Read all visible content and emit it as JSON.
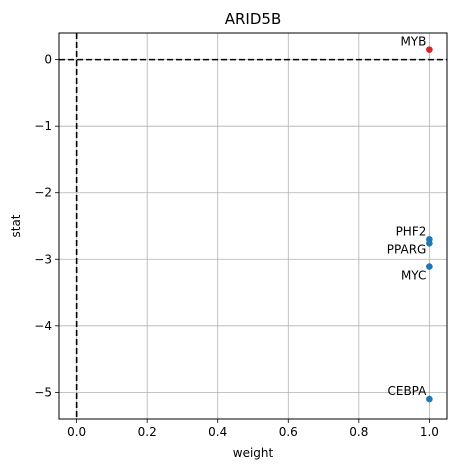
{
  "chart_data": {
    "type": "scatter",
    "title": "ARID5B",
    "xlabel": "weight",
    "ylabel": "stat",
    "xlim": [
      -0.05,
      1.05
    ],
    "ylim": [
      -5.4,
      0.4
    ],
    "xticks": [
      0.0,
      0.2,
      0.4,
      0.6,
      0.8,
      1.0
    ],
    "xtick_labels": [
      "0.0",
      "0.2",
      "0.4",
      "0.6",
      "0.8",
      "1.0"
    ],
    "yticks": [
      0,
      -1,
      -2,
      -3,
      -4,
      -5
    ],
    "ytick_labels": [
      "0",
      "−1",
      "−2",
      "−3",
      "−4",
      "−5"
    ],
    "grid": true,
    "reference_lines": {
      "x": 0,
      "y": 0,
      "style": "dashed",
      "color": "#000000"
    },
    "colors": {
      "positive": "#d62728",
      "negative": "#1f77b4"
    },
    "points": [
      {
        "label": "MYB",
        "x": 1.0,
        "y": 0.15,
        "color": "#d62728"
      },
      {
        "label": "PHF2",
        "x": 1.0,
        "y": -2.7,
        "color": "#1f77b4"
      },
      {
        "label": "PPARG",
        "x": 1.0,
        "y": -2.76,
        "color": "#1f77b4"
      },
      {
        "label": "MYC",
        "x": 1.0,
        "y": -3.11,
        "color": "#1f77b4"
      },
      {
        "label": "CEBPA",
        "x": 1.0,
        "y": -5.1,
        "color": "#1f77b4"
      }
    ]
  }
}
